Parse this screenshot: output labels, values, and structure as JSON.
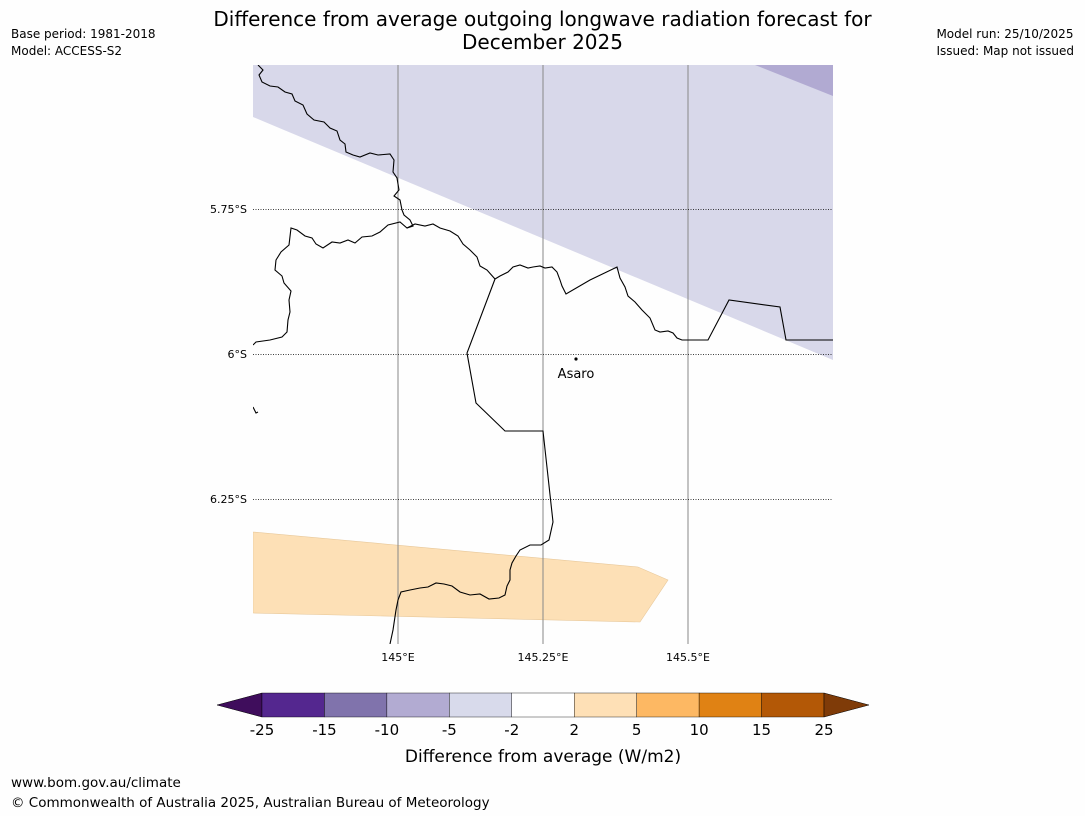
{
  "header": {
    "title_line1": "Difference from average outgoing longwave radiation forecast for",
    "title_line2": "December 2025",
    "base_period": "Base period: 1981-2018",
    "model": "Model: ACCESS-S2",
    "model_run": "Model run: 25/10/2025",
    "issued": "Issued: Map not issued"
  },
  "map": {
    "lat_labels": [
      "5.75°S",
      "6°S",
      "6.25°S"
    ],
    "lon_labels": [
      "145°E",
      "145.25°E",
      "145.5°E"
    ],
    "place": {
      "name": "Asaro",
      "lat": -6.01,
      "lon": 145.305
    },
    "extent": {
      "lon_min": 144.75,
      "lon_max": 145.75,
      "lat_min": -6.5,
      "lat_max": -5.5
    },
    "region_colors": {
      "negative_light": "#d8d8ea",
      "negative_mid": "#b1aad2",
      "positive_light": "#fee0b6"
    }
  },
  "legend": {
    "label": "Difference from average (W/m2)",
    "ticks": [
      "-25",
      "-15",
      "-10",
      "-5",
      "-2",
      "2",
      "5",
      "10",
      "15",
      "25"
    ],
    "colors": [
      "#3f0d5c",
      "#54278f",
      "#8073ac",
      "#b2abd2",
      "#d8daeb",
      "#ffffff",
      "#fee0b6",
      "#fdb863",
      "#e08214",
      "#b35806",
      "#7f3b08"
    ]
  },
  "footer": {
    "url": "www.bom.gov.au/climate",
    "copyright": "© Commonwealth of Australia 2025, Australian Bureau of Meteorology"
  }
}
